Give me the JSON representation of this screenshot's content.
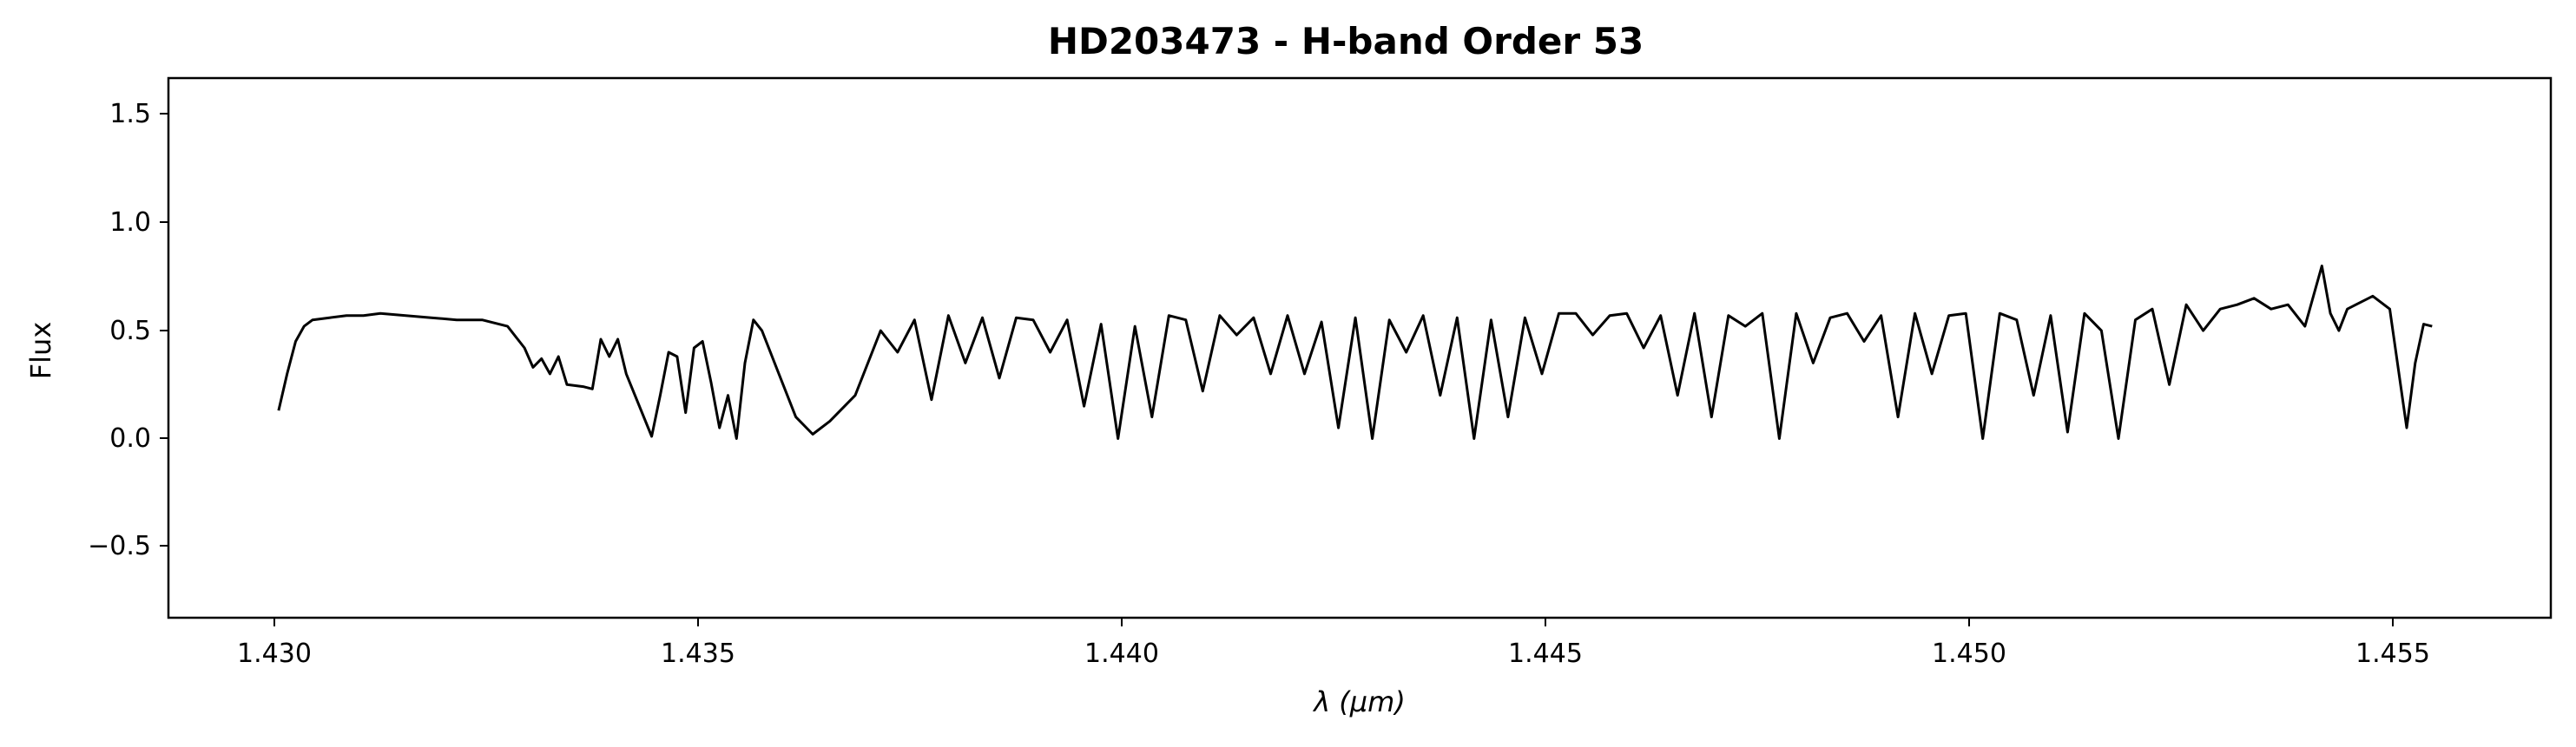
{
  "chart_data": {
    "type": "line",
    "title": "HD203473 - H-band Order 53",
    "xlabel": "λ (μm)",
    "ylabel": "Flux",
    "xlim": [
      1.4288,
      1.4569
    ],
    "ylim": [
      -0.83,
      1.67
    ],
    "xticks": [
      "1.430",
      "1.435",
      "1.440",
      "1.445",
      "1.450",
      "1.455"
    ],
    "yticks": [
      "−0.5",
      "0.0",
      "0.5",
      "1.0",
      "1.5"
    ],
    "grid": false,
    "line_color": "#000000",
    "series": [
      {
        "x": [
          1.4301,
          1.4302,
          1.4303,
          1.4304,
          1.4305,
          1.4307,
          1.4309,
          1.4311,
          1.4313,
          1.4316,
          1.4319,
          1.4322,
          1.4325,
          1.4328,
          1.433,
          1.4331,
          1.4332,
          1.4333,
          1.4334,
          1.4335,
          1.4337,
          1.4338,
          1.4339,
          1.434,
          1.4341,
          1.4342,
          1.4345,
          1.4346,
          1.4347,
          1.4348,
          1.4349,
          1.435,
          1.4351,
          1.4352,
          1.4353,
          1.4354,
          1.4355,
          1.4356,
          1.4357,
          1.4358,
          1.436,
          1.4362,
          1.4364,
          1.4366,
          1.4369,
          1.4372,
          1.4374,
          1.4376,
          1.4378,
          1.438,
          1.4382,
          1.4384,
          1.4386,
          1.4388,
          1.439,
          1.4392,
          1.4394,
          1.4396,
          1.4398,
          1.44,
          1.4402,
          1.4404,
          1.4406,
          1.4408,
          1.441,
          1.4412,
          1.4414,
          1.4416,
          1.4418,
          1.442,
          1.4422,
          1.4424,
          1.4426,
          1.4428,
          1.443,
          1.4432,
          1.4434,
          1.4436,
          1.4438,
          1.444,
          1.4442,
          1.4444,
          1.4446,
          1.4448,
          1.445,
          1.4452,
          1.4454,
          1.4456,
          1.4458,
          1.446,
          1.4462,
          1.4464,
          1.4466,
          1.4468,
          1.447,
          1.4472,
          1.4474,
          1.4476,
          1.4478,
          1.448,
          1.4482,
          1.4484,
          1.4486,
          1.4488,
          1.449,
          1.4492,
          1.4494,
          1.4496,
          1.4498,
          1.45,
          1.4502,
          1.4504,
          1.4506,
          1.4508,
          1.451,
          1.4512,
          1.4514,
          1.4516,
          1.4518,
          1.452,
          1.4522,
          1.4524,
          1.4526,
          1.4528,
          1.453,
          1.4532,
          1.4534,
          1.4536,
          1.4538,
          1.454,
          1.4542,
          1.4543,
          1.4544,
          1.4545,
          1.4546,
          1.4548,
          1.455,
          1.4552,
          1.4553,
          1.4554,
          1.4555
        ],
        "y": [
          0.13,
          0.3,
          0.45,
          0.52,
          0.55,
          0.56,
          0.57,
          0.57,
          0.58,
          0.57,
          0.56,
          0.55,
          0.55,
          0.52,
          0.42,
          0.33,
          0.37,
          0.3,
          0.38,
          0.25,
          0.24,
          0.23,
          0.46,
          0.38,
          0.46,
          0.3,
          0.01,
          0.2,
          0.4,
          0.38,
          0.12,
          0.42,
          0.45,
          0.26,
          0.05,
          0.2,
          0.0,
          0.35,
          0.55,
          0.5,
          0.3,
          0.1,
          0.02,
          0.08,
          0.2,
          0.5,
          0.4,
          0.55,
          0.18,
          0.57,
          0.35,
          0.56,
          0.28,
          0.56,
          0.55,
          0.4,
          0.55,
          0.15,
          0.53,
          0.0,
          0.52,
          0.1,
          0.57,
          0.55,
          0.22,
          0.57,
          0.48,
          0.56,
          0.3,
          0.57,
          0.3,
          0.54,
          0.05,
          0.56,
          0.0,
          0.55,
          0.4,
          0.57,
          0.2,
          0.56,
          0.0,
          0.55,
          0.1,
          0.56,
          0.3,
          0.58,
          0.58,
          0.48,
          0.57,
          0.58,
          0.42,
          0.57,
          0.2,
          0.58,
          0.1,
          0.57,
          0.52,
          0.58,
          0.0,
          0.58,
          0.35,
          0.56,
          0.58,
          0.45,
          0.57,
          0.1,
          0.58,
          0.3,
          0.57,
          0.58,
          0.0,
          0.58,
          0.55,
          0.2,
          0.57,
          0.03,
          0.58,
          0.5,
          0.0,
          0.55,
          0.6,
          0.25,
          0.62,
          0.5,
          0.6,
          0.62,
          0.65,
          0.6,
          0.62,
          0.52,
          0.8,
          0.58,
          0.5,
          0.6,
          0.62,
          0.66,
          0.6,
          0.05,
          0.35,
          0.53,
          0.52
        ]
      }
    ]
  }
}
